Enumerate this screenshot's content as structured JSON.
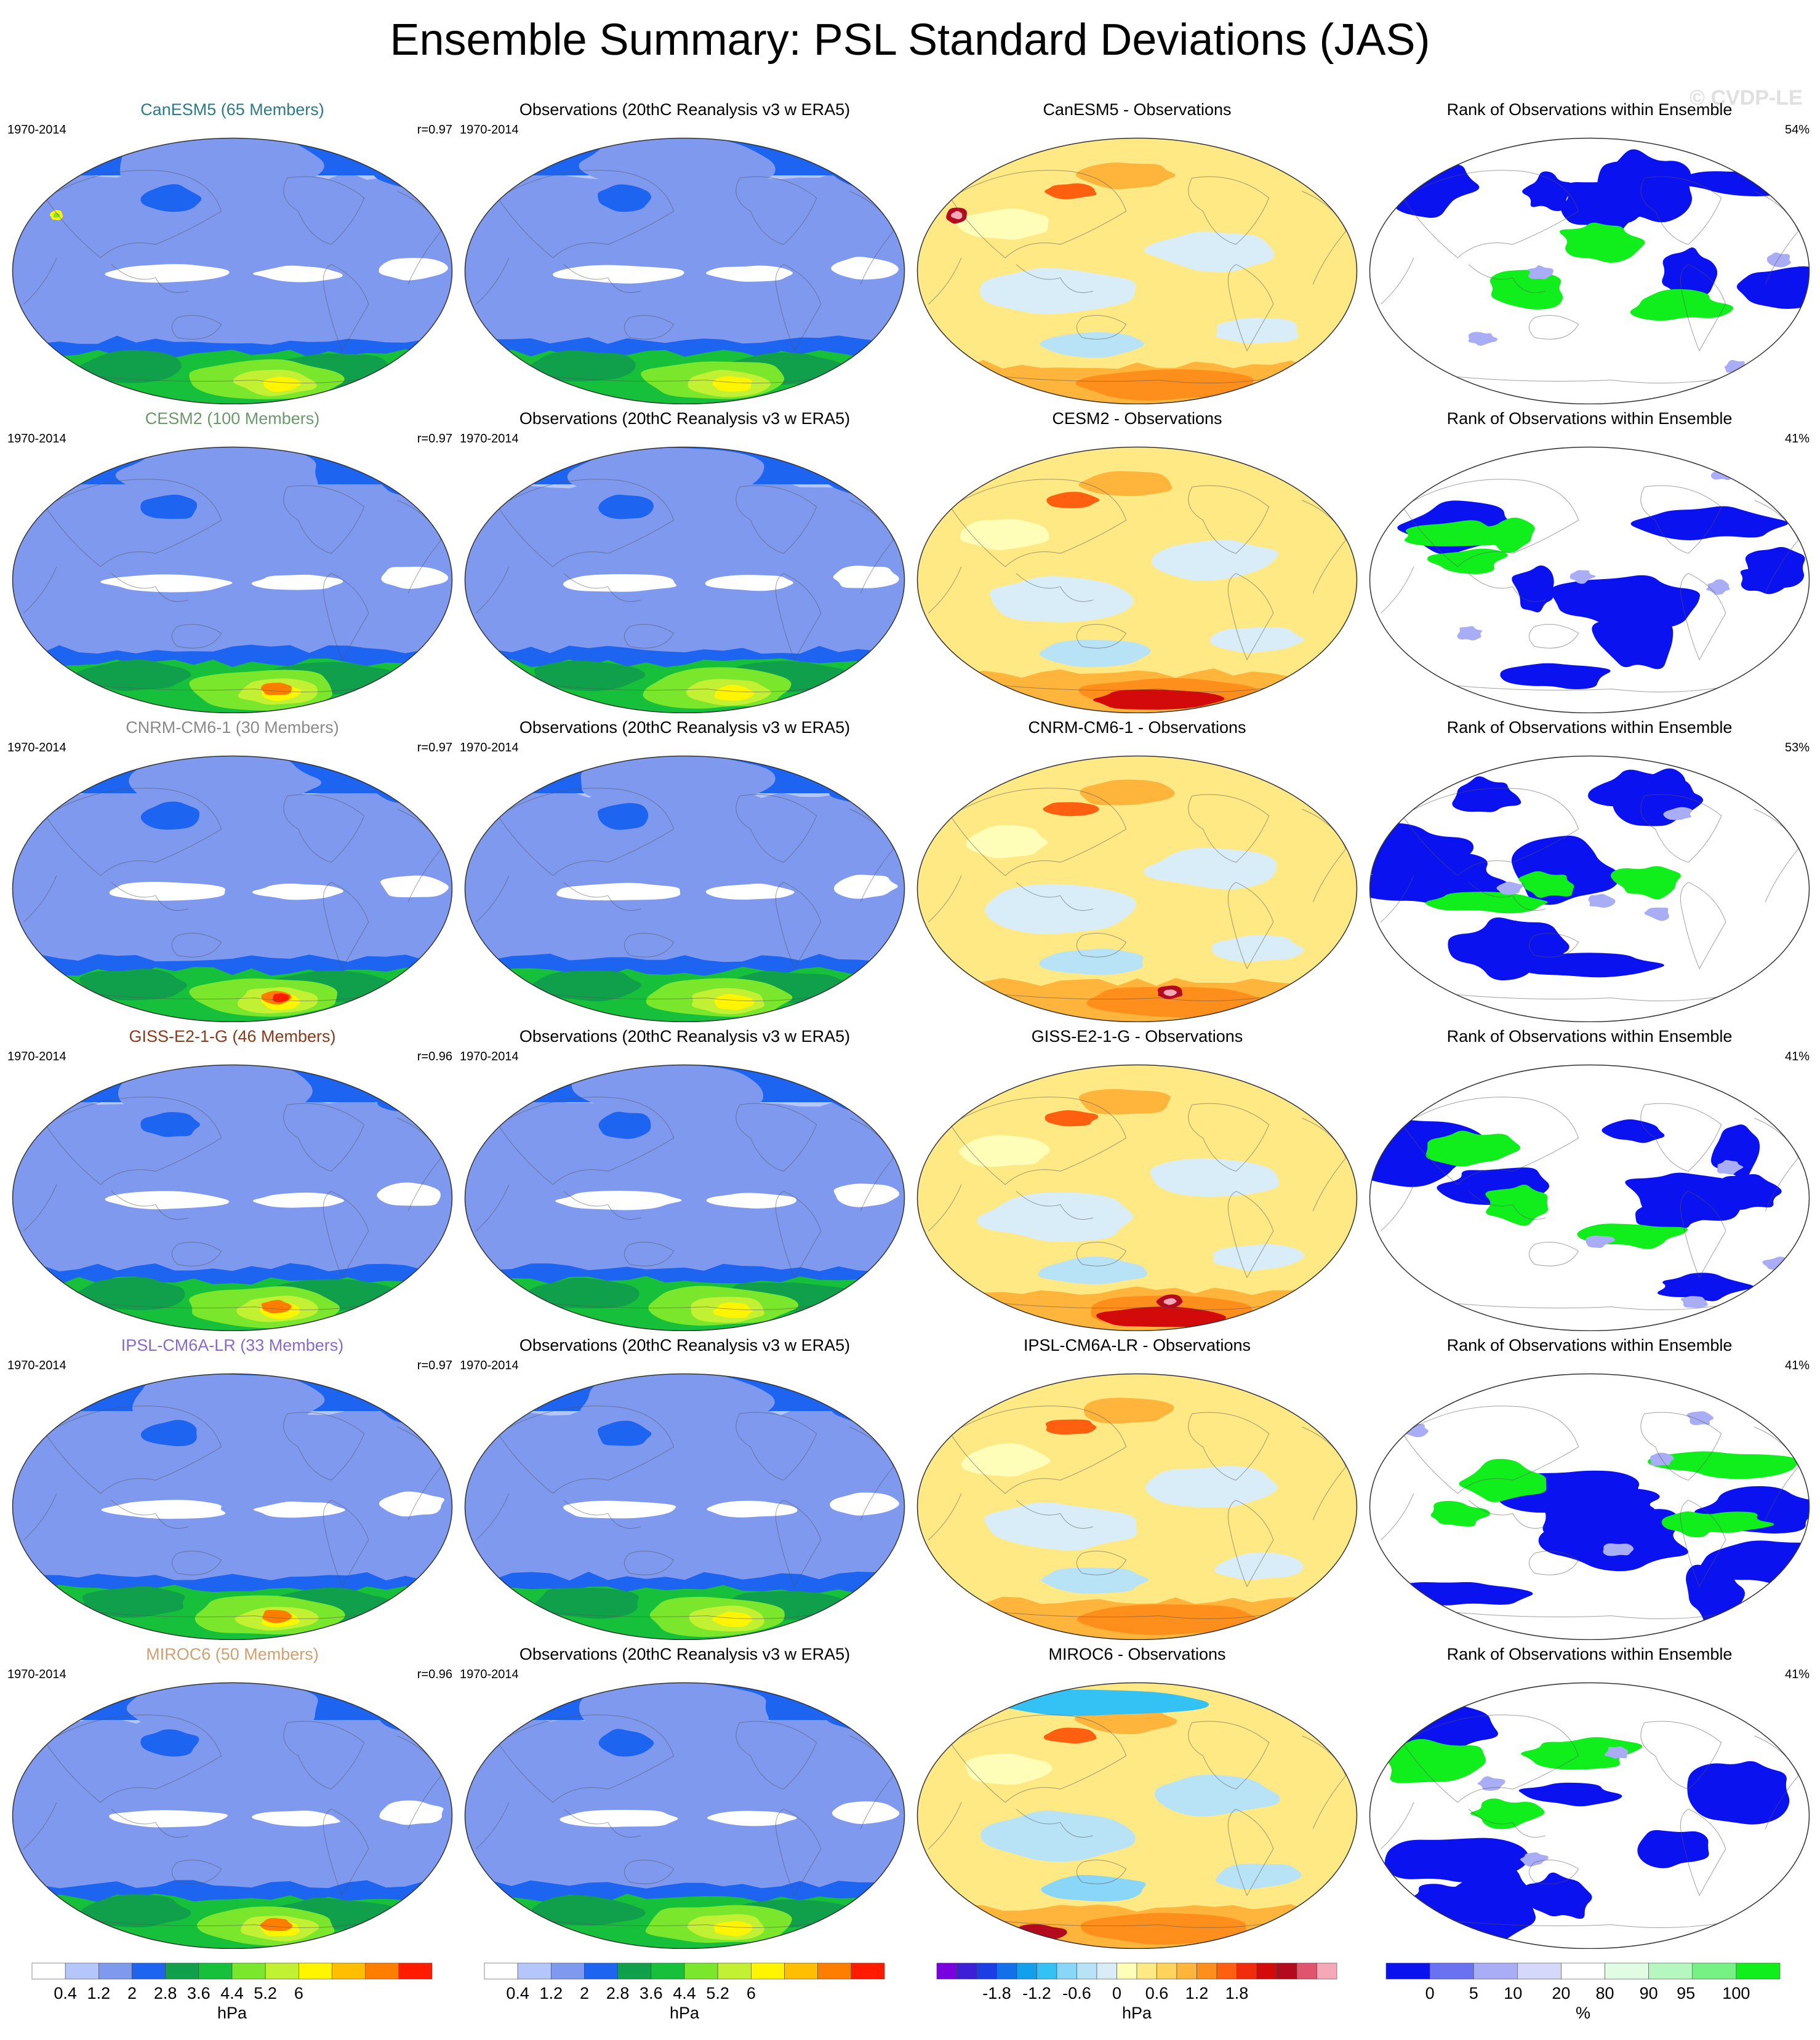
{
  "title": "Ensemble Summary: PSL Standard Deviations (JAS)",
  "watermark": "© CVDP-LE",
  "colors": {
    "std": [
      "#ffffff",
      "#b4c6fa",
      "#7f99ef",
      "#1d64f0",
      "#109f4b",
      "#16c03a",
      "#7ae62c",
      "#c2f032",
      "#fff500",
      "#ffbe00",
      "#ff7e00",
      "#ff1b00"
    ],
    "diff": [
      "#7a00e0",
      "#3d1fd8",
      "#1a3ee4",
      "#1270ea",
      "#12a0ee",
      "#34c2f5",
      "#8ad6f9",
      "#b8e3f7",
      "#d8edf7",
      "#fefeb8",
      "#ffe985",
      "#ffd35c",
      "#ffb43c",
      "#ff8f1c",
      "#ff6010",
      "#f02c0c",
      "#d20a0a",
      "#b40a1e",
      "#e0546e",
      "#f5a8b6"
    ],
    "rank": [
      "#0b12f0",
      "#6b72f2",
      "#a8adf5",
      "#d5d8fb",
      "#ffffff",
      "#e0fde4",
      "#b5f7bf",
      "#76f285",
      "#10ef1c"
    ]
  },
  "rows": [
    {
      "model": {
        "title": "CanESM5 (65 Members)",
        "title_color": "#2a7a8a",
        "period": "1970-2014",
        "r": "r=0.97"
      },
      "obs": {
        "title": "Observations (20thC Reanalysis v3 w ERA5)",
        "period": "1970-2014"
      },
      "diff": {
        "title": "CanESM5 - Observations"
      },
      "rank": {
        "title": "Rank of Observations within Ensemble",
        "pct": "54%"
      }
    },
    {
      "model": {
        "title": "CESM2 (100 Members)",
        "title_color": "#6a9a6a",
        "period": "1970-2014",
        "r": "r=0.97"
      },
      "obs": {
        "title": "Observations (20thC Reanalysis v3 w ERA5)",
        "period": "1970-2014"
      },
      "diff": {
        "title": "CESM2 - Observations"
      },
      "rank": {
        "title": "Rank of Observations within Ensemble",
        "pct": "41%"
      }
    },
    {
      "model": {
        "title": "CNRM-CM6-1 (30 Members)",
        "title_color": "#8a8a8a",
        "period": "1970-2014",
        "r": "r=0.97"
      },
      "obs": {
        "title": "Observations (20thC Reanalysis v3 w ERA5)",
        "period": "1970-2014"
      },
      "diff": {
        "title": "CNRM-CM6-1 - Observations"
      },
      "rank": {
        "title": "Rank of Observations within Ensemble",
        "pct": "53%"
      }
    },
    {
      "model": {
        "title": "GISS-E2-1-G (46 Members)",
        "title_color": "#8a3a1a",
        "period": "1970-2014",
        "r": "r=0.96"
      },
      "obs": {
        "title": "Observations (20thC Reanalysis v3 w ERA5)",
        "period": "1970-2014"
      },
      "diff": {
        "title": "GISS-E2-1-G - Observations"
      },
      "rank": {
        "title": "Rank of Observations within Ensemble",
        "pct": "41%"
      }
    },
    {
      "model": {
        "title": "IPSL-CM6A-LR (33 Members)",
        "title_color": "#8a6ac8",
        "period": "1970-2014",
        "r": "r=0.97"
      },
      "obs": {
        "title": "Observations (20thC Reanalysis v3 w ERA5)",
        "period": "1970-2014"
      },
      "diff": {
        "title": "IPSL-CM6A-LR - Observations"
      },
      "rank": {
        "title": "Rank of Observations within Ensemble",
        "pct": "41%"
      }
    },
    {
      "model": {
        "title": "MIROC6 (50 Members)",
        "title_color": "#d0a070",
        "period": "1970-2014",
        "r": "r=0.96"
      },
      "obs": {
        "title": "Observations (20thC Reanalysis v3 w ERA5)",
        "period": "1970-2014"
      },
      "diff": {
        "title": "MIROC6 - Observations"
      },
      "rank": {
        "title": "Rank of Observations within Ensemble",
        "pct": "41%"
      }
    }
  ],
  "colorbars": {
    "std": {
      "ticks": [
        "0.4",
        "1.2",
        "2",
        "2.8",
        "3.6",
        "4.4",
        "5.2",
        "6"
      ],
      "unit": "hPa"
    },
    "diff": {
      "ticks": [
        "-1.8",
        "-1.2",
        "-0.6",
        "0",
        "0.6",
        "1.2",
        "1.8"
      ],
      "unit": "hPa"
    },
    "rank": {
      "ticks": [
        "0",
        "5",
        "10",
        "20",
        "80",
        "90",
        "95",
        "100"
      ],
      "unit": "%"
    }
  }
}
